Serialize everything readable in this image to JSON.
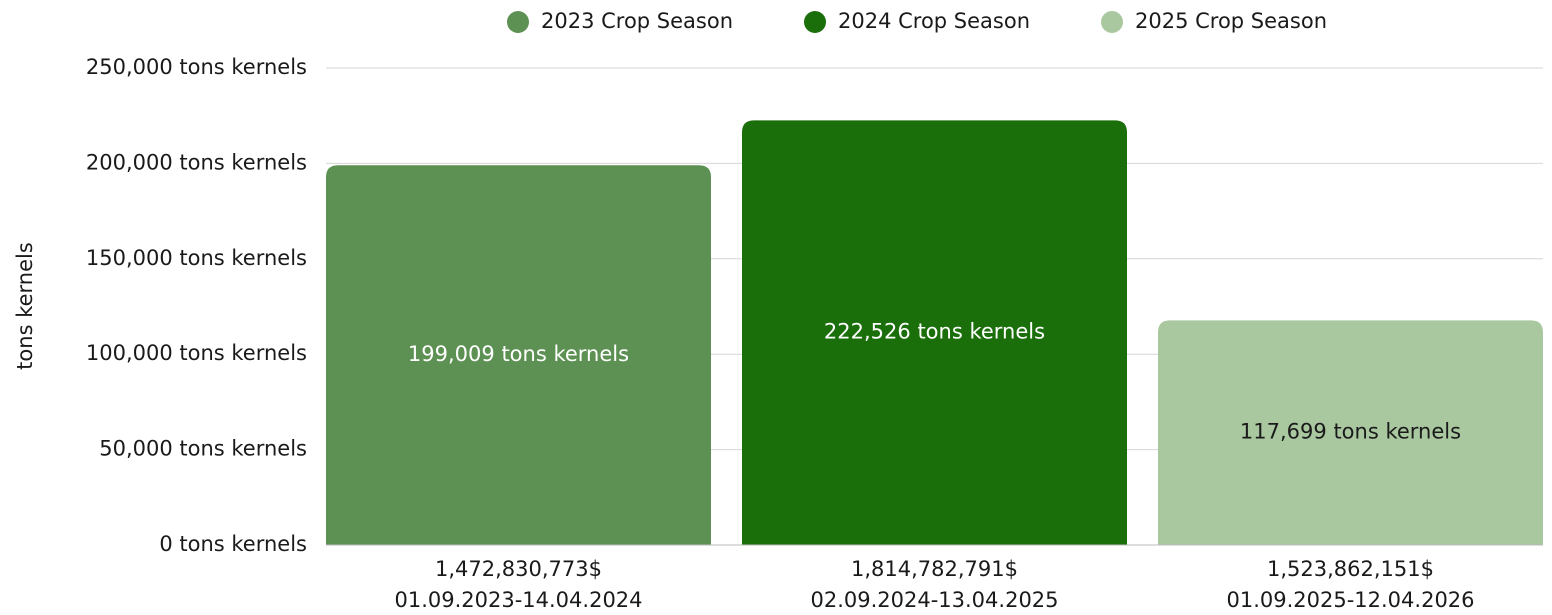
{
  "chart_data": {
    "type": "bar",
    "y_axis_label": "tons kernels",
    "categories": [
      [
        "1,472,830,773$",
        "01.09.2023-14.04.2024"
      ],
      [
        "1,814,782,791$",
        "02.09.2024-13.04.2025"
      ],
      [
        "1,523,862,151$",
        "01.09.2025-12.04.2026"
      ]
    ],
    "series": [
      {
        "name": "2023 Crop Season",
        "color": "#5c9153",
        "label_color": "#ffffff",
        "values": [
          199009,
          null,
          null
        ],
        "value_labels": [
          "199,009 tons kernels",
          null,
          null
        ]
      },
      {
        "name": "2024 Crop Season",
        "color": "#1a6f0a",
        "label_color": "#ffffff",
        "values": [
          null,
          222526,
          null
        ],
        "value_labels": [
          null,
          "222,526 tons kernels",
          null
        ]
      },
      {
        "name": "2025 Crop Season",
        "color": "#a9c8a0",
        "label_color": "#1a1a1a",
        "values": [
          null,
          null,
          117699
        ],
        "value_labels": [
          null,
          null,
          "117,699 tons kernels"
        ]
      }
    ],
    "ylim": [
      0,
      250000
    ],
    "yticks": [
      {
        "value": 0,
        "label": "0 tons kernels"
      },
      {
        "value": 50000,
        "label": "50,000 tons kernels"
      },
      {
        "value": 100000,
        "label": "100,000 tons kernels"
      },
      {
        "value": 150000,
        "label": "150,000 tons kernels"
      },
      {
        "value": 200000,
        "label": "200,000 tons kernels"
      },
      {
        "value": 250000,
        "label": "250,000 tons kernels"
      }
    ],
    "grid": true,
    "legend": "top"
  }
}
